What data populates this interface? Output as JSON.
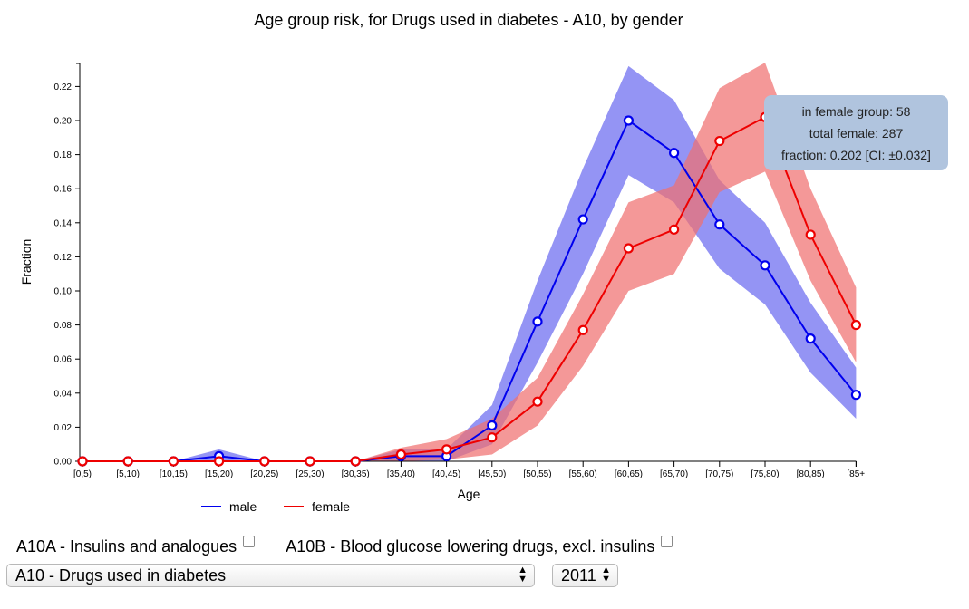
{
  "chart_data": {
    "type": "line",
    "title": "Age group risk, for Drugs used in diabetes - A10, by gender",
    "xlabel": "Age",
    "ylabel": "Fraction",
    "categories": [
      "[0,5)",
      "[5,10)",
      "[10,15)",
      "[15,20)",
      "[20,25)",
      "[25,30)",
      "[30,35)",
      "[35,40)",
      "[40,45)",
      "[45,50)",
      "[50,55)",
      "[55,60)",
      "[60,65)",
      "[65,70)",
      "[70,75)",
      "[75,80)",
      "[80,85)",
      "[85+"
    ],
    "yticks": [
      "0.00",
      "0.02",
      "0.04",
      "0.06",
      "0.08",
      "0.10",
      "0.12",
      "0.14",
      "0.16",
      "0.18",
      "0.20",
      "0.22"
    ],
    "ylim": [
      0,
      0.22
    ],
    "legend_position": "bottom",
    "series": [
      {
        "name": "male",
        "color": "#0000ee",
        "band_color": "#6b6bf0",
        "values": [
          0.0,
          0.0,
          0.0,
          0.003,
          0.0,
          0.0,
          0.0,
          0.003,
          0.003,
          0.021,
          0.082,
          0.142,
          0.2,
          0.181,
          0.139,
          0.115,
          0.072,
          0.039
        ],
        "ci_lower": [
          0.0,
          0.0,
          0.0,
          0.0,
          0.0,
          0.0,
          0.0,
          0.0,
          0.0,
          0.01,
          0.058,
          0.11,
          0.168,
          0.152,
          0.113,
          0.092,
          0.052,
          0.025
        ],
        "ci_upper": [
          0.0,
          0.0,
          0.0,
          0.007,
          0.0,
          0.0,
          0.0,
          0.007,
          0.007,
          0.033,
          0.106,
          0.172,
          0.232,
          0.212,
          0.165,
          0.14,
          0.093,
          0.055
        ]
      },
      {
        "name": "female",
        "color": "#ee0000",
        "band_color": "#f07070",
        "values": [
          0.0,
          0.0,
          0.0,
          0.0,
          0.0,
          0.0,
          0.0,
          0.004,
          0.007,
          0.014,
          0.035,
          0.077,
          0.125,
          0.136,
          0.188,
          0.202,
          0.133,
          0.08
        ],
        "ci_lower": [
          0.0,
          0.0,
          0.0,
          0.0,
          0.0,
          0.0,
          0.0,
          0.0,
          0.001,
          0.004,
          0.021,
          0.056,
          0.1,
          0.11,
          0.158,
          0.17,
          0.106,
          0.058
        ],
        "ci_upper": [
          0.0,
          0.0,
          0.0,
          0.0,
          0.0,
          0.0,
          0.0,
          0.008,
          0.013,
          0.025,
          0.049,
          0.098,
          0.152,
          0.162,
          0.219,
          0.234,
          0.16,
          0.102
        ]
      }
    ]
  },
  "tooltip": {
    "line1": "in female group: 58",
    "line2": "total female: 287",
    "line3": "fraction: 0.202 [CI: ±0.032]"
  },
  "controls": {
    "checkbox_a10a_label": "A10A - Insulins and analogues",
    "checkbox_a10b_label": "A10B - Blood glucose lowering drugs, excl. insulins",
    "drug_select_value": "A10 - Drugs used in diabetes",
    "year_select_value": "2011"
  }
}
